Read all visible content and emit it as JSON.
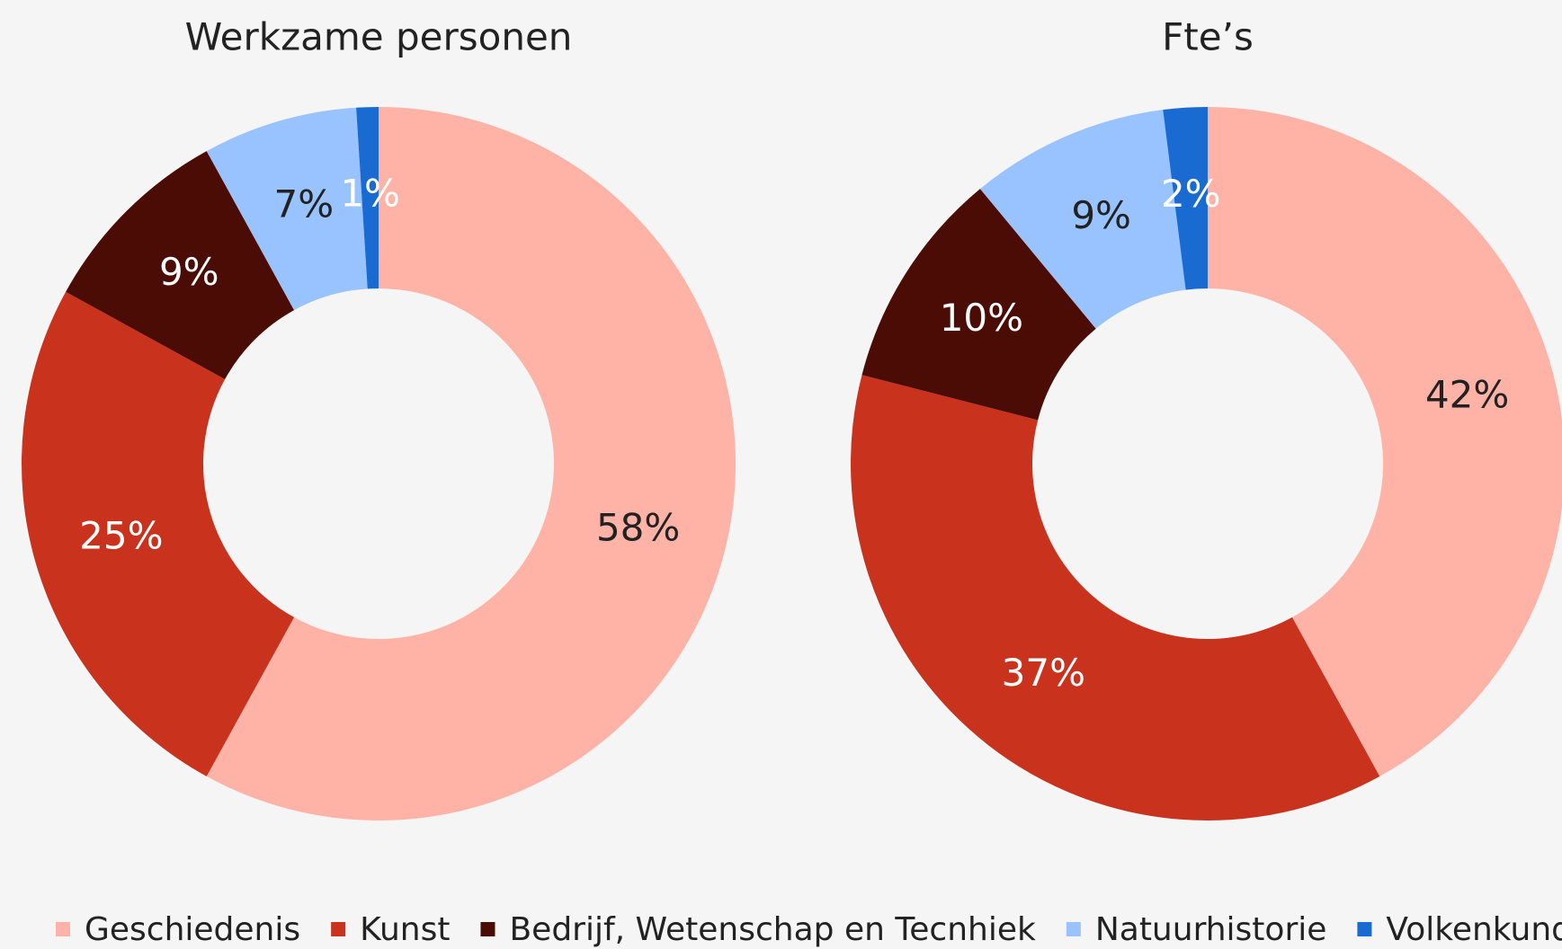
{
  "chart_data": [
    {
      "type": "pie",
      "title": "Werkzame personen",
      "categories": [
        "Geschiedenis",
        "Kunst",
        "Bedrijf, Wetenschap en Tecnhiek",
        "Natuurhistorie",
        "Volkenkunde"
      ],
      "values": [
        58,
        25,
        9,
        7,
        1
      ],
      "value_labels": [
        "58%",
        "25%",
        "9%",
        "7%",
        "1%"
      ],
      "colors": [
        "#ffb3a7",
        "#c9321c",
        "#4a0c04",
        "#99c3ff",
        "#1a6bd1"
      ]
    },
    {
      "type": "pie",
      "title": "Fte’s",
      "categories": [
        "Geschiedenis",
        "Kunst",
        "Bedrijf, Wetenschap en Tecnhiek",
        "Natuurhistorie",
        "Volkenkunde"
      ],
      "values": [
        42,
        37,
        10,
        9,
        2
      ],
      "value_labels": [
        "42%",
        "37%",
        "10%",
        "9%",
        "2%"
      ],
      "colors": [
        "#ffb3a7",
        "#c9321c",
        "#4a0c04",
        "#99c3ff",
        "#1a6bd1"
      ]
    }
  ]
}
